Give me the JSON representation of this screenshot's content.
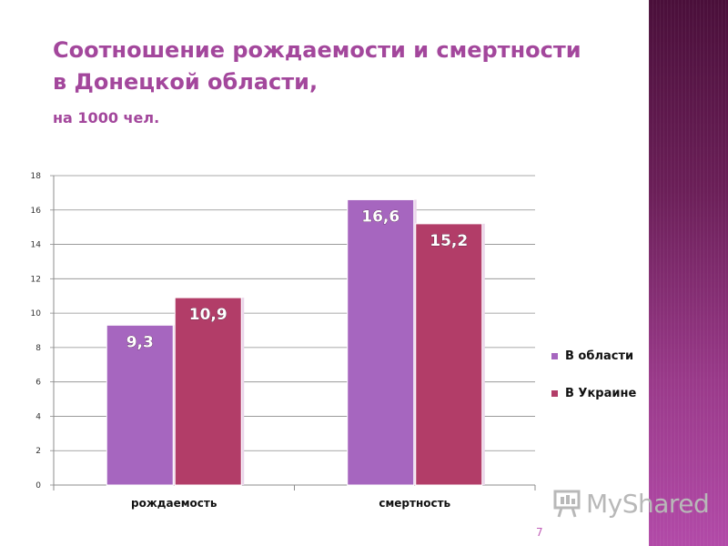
{
  "title_line1": "Соотношение рождаемости и смертности",
  "title_line2": "в Донецкой области,",
  "subtitle": "на 1000 чел.",
  "page_number": "7",
  "logo_text": "MyShared",
  "chart_data": {
    "type": "bar",
    "title": "Соотношение рождаемости и смертности в Донецкой области, на 1000 чел.",
    "categories": [
      "рождаемость",
      "смертность"
    ],
    "series": [
      {
        "name": "В области",
        "color": "#a666bf",
        "values": [
          9.3,
          16.6
        ],
        "labels": [
          "9,3",
          "16,6"
        ]
      },
      {
        "name": "В Украине",
        "color": "#b23d68",
        "values": [
          10.9,
          15.2
        ],
        "labels": [
          "10,9",
          "15,2"
        ]
      }
    ],
    "ylim": [
      0,
      18
    ],
    "yticks": [
      "0",
      "2",
      "4",
      "6",
      "8",
      "10",
      "12",
      "14",
      "16",
      "18"
    ],
    "grid": true,
    "legend": "right"
  }
}
